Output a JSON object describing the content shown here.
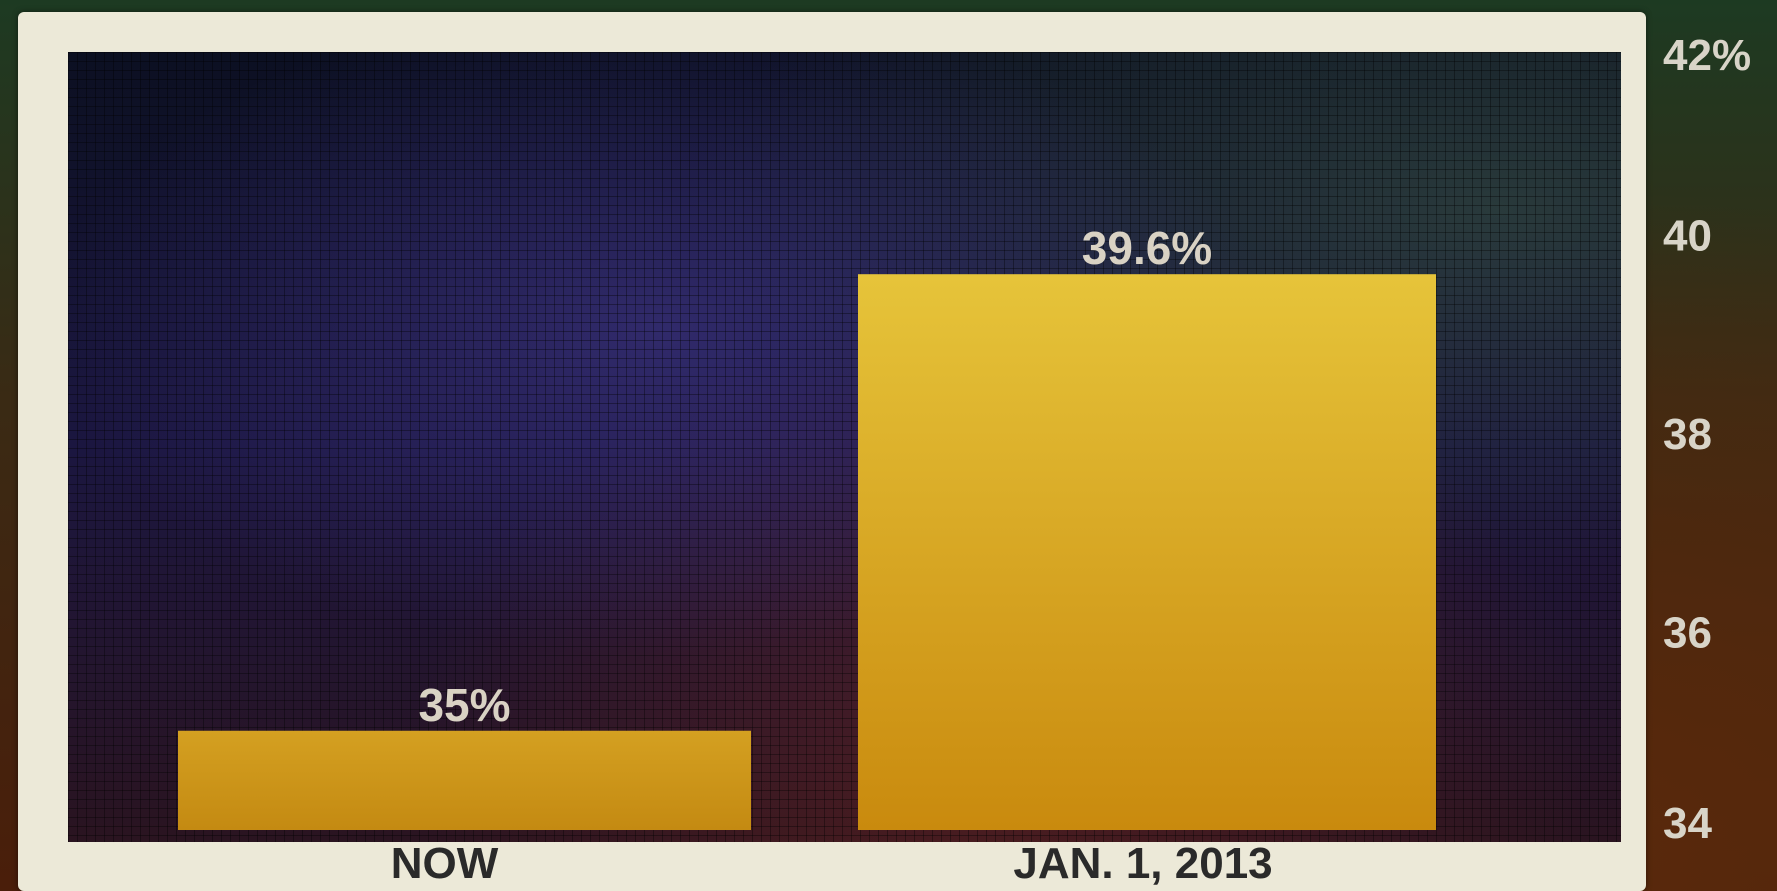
{
  "chart_data": {
    "type": "bar",
    "categories": [
      "NOW",
      "JAN. 1, 2013"
    ],
    "values": [
      35,
      39.6
    ],
    "value_labels": [
      "35%",
      "39.6%"
    ],
    "ylim": [
      34,
      42
    ],
    "yticks": [
      34,
      36,
      38,
      40,
      42
    ],
    "ytick_labels": [
      "34",
      "36",
      "38",
      "40",
      "42%"
    ],
    "title": "",
    "xlabel": "",
    "ylabel": "",
    "grid": false,
    "colors": {
      "bar_now_top": "#d4a021",
      "bar_now_bottom": "#c48a12",
      "bar_future_top": "#e6c43a",
      "bar_future_bottom": "#c98a0e"
    }
  }
}
